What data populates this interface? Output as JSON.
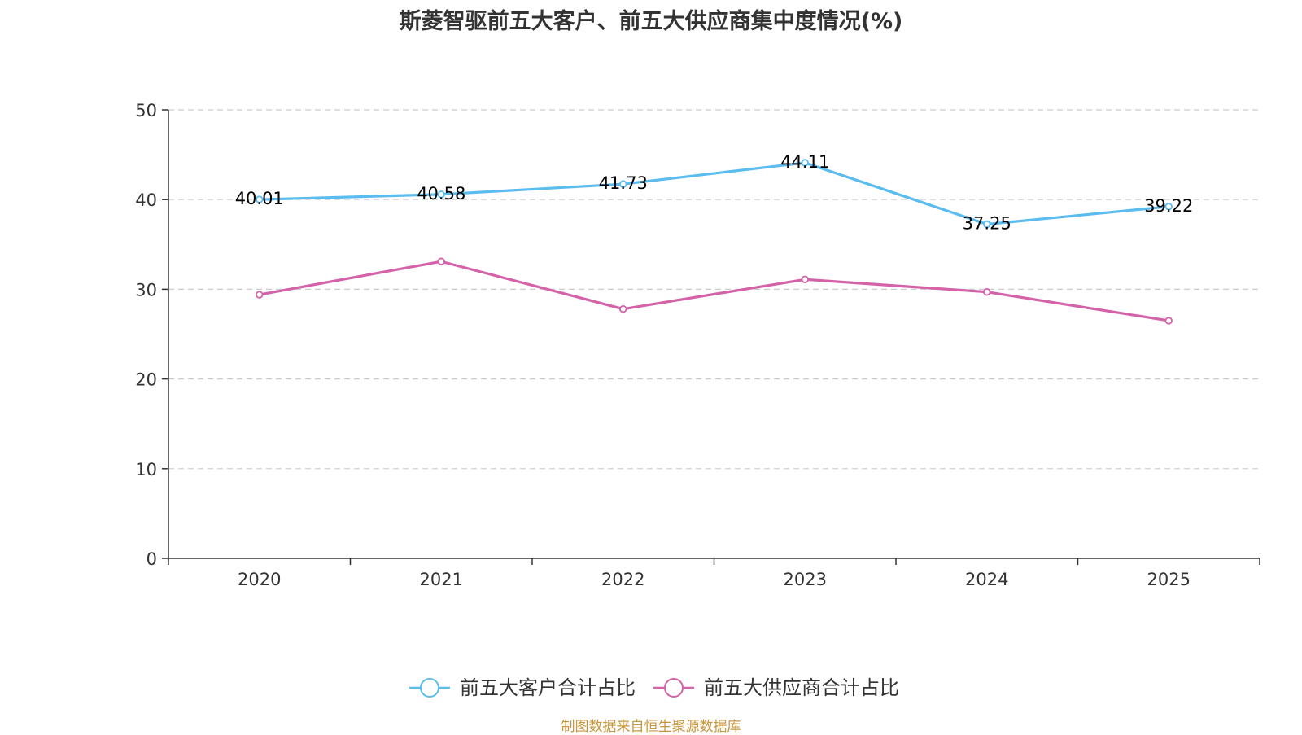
{
  "chart_data": {
    "type": "line",
    "title": "斯菱智驱前五大客户、前五大供应商集中度情况(%)",
    "categories": [
      "2020",
      "2021",
      "2022",
      "2023",
      "2024",
      "2025"
    ],
    "ylim": [
      0,
      50
    ],
    "yticks": [
      0,
      10,
      20,
      30,
      40,
      50
    ],
    "grid": true,
    "legend_position": "bottom-center",
    "xlabel": "",
    "ylabel": "",
    "series": [
      {
        "name": "前五大客户合计占比",
        "color": "#5bbcf0",
        "values": [
          40.01,
          40.58,
          41.73,
          44.11,
          37.25,
          39.22
        ],
        "labels": [
          "40.01",
          "40.58",
          "41.73",
          "44.11",
          "37.25",
          "39.22"
        ],
        "show_labels": true
      },
      {
        "name": "前五大供应商合计占比",
        "color": "#d462a8",
        "values": [
          29.4,
          33.1,
          27.8,
          31.1,
          29.7,
          26.5
        ],
        "show_labels": false
      }
    ]
  },
  "source": "制图数据来自恒生聚源数据库"
}
